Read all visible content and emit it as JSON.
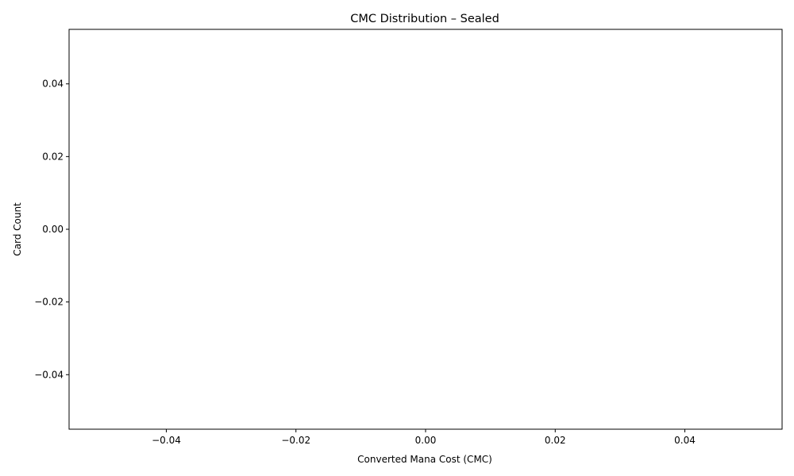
{
  "chart_data": {
    "type": "bar",
    "title": "CMC Distribution – Sealed",
    "xlabel": "Converted Mana Cost (CMC)",
    "ylabel": "Card Count",
    "categories": [],
    "values": [],
    "xlim": [
      -0.055,
      0.055
    ],
    "ylim": [
      -0.055,
      0.055
    ],
    "xticks": [
      "−0.04",
      "−0.02",
      "0.00",
      "0.02",
      "0.04"
    ],
    "xtick_values": [
      -0.04,
      -0.02,
      0.0,
      0.02,
      0.04
    ],
    "yticks": [
      "−0.04",
      "−0.02",
      "0.00",
      "0.02",
      "0.04"
    ],
    "ytick_values": [
      -0.04,
      -0.02,
      0.0,
      0.02,
      0.04
    ],
    "grid": false,
    "legend": "none"
  }
}
